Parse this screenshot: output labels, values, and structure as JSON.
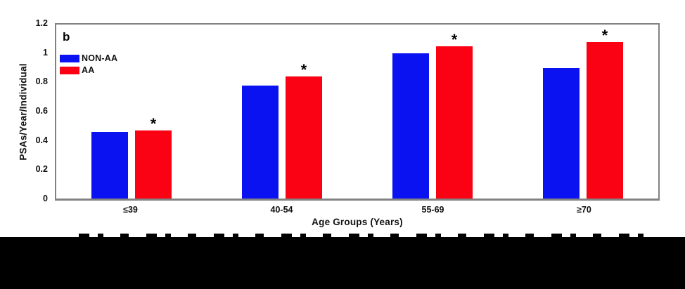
{
  "chart_data": {
    "type": "bar",
    "panel_label": "b",
    "categories": [
      "≤39",
      "40-54",
      "55-69",
      "≥70"
    ],
    "series": [
      {
        "name": "NON-AA",
        "color": "#0A12F2",
        "values": [
          0.46,
          0.78,
          1.0,
          0.9
        ]
      },
      {
        "name": "AA",
        "color": "#FB0114",
        "values": [
          0.47,
          0.84,
          1.05,
          1.08
        ]
      }
    ],
    "significance": {
      "marker": "*",
      "on_series": "AA",
      "groups": [
        "≤39",
        "40-54",
        "55-69",
        "≥70"
      ]
    },
    "xlabel": "Age Groups (Years)",
    "ylabel": "PSAs/Year/Individual",
    "ylim": [
      0,
      1.2
    ],
    "yticks": [
      "0",
      "0.2",
      "0.4",
      "0.6",
      "0.8",
      "1",
      "1.2"
    ],
    "legend_position": "inside-top-left",
    "grid": false,
    "frame_color": "#828282"
  }
}
